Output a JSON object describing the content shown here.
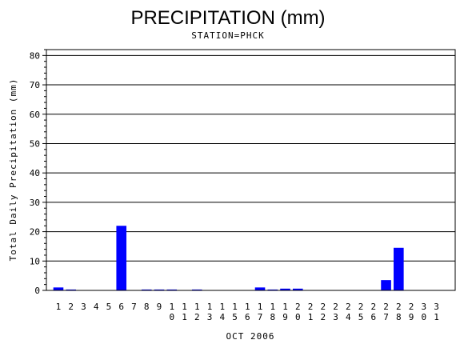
{
  "chart_data": {
    "type": "bar",
    "title": "PRECIPITATION (mm)",
    "subtitle": "STATION=PHCK",
    "xlabel": "OCT 2006",
    "ylabel": "Total Daily Precipitation (mm)",
    "ylim": [
      0,
      82
    ],
    "yticks": [
      0,
      10,
      20,
      30,
      40,
      50,
      60,
      70,
      80
    ],
    "grid": true,
    "bar_color": "#0000ff",
    "categories": [
      "1",
      "2",
      "3",
      "4",
      "5",
      "6",
      "7",
      "8",
      "9",
      "10",
      "11",
      "12",
      "13",
      "14",
      "15",
      "16",
      "17",
      "18",
      "19",
      "20",
      "21",
      "22",
      "23",
      "24",
      "25",
      "26",
      "27",
      "28",
      "29",
      "30",
      "31"
    ],
    "values": [
      1.0,
      0.3,
      0,
      0,
      0,
      22.0,
      0,
      0.3,
      0.3,
      0.3,
      0,
      0.3,
      0,
      0,
      0,
      0,
      1.0,
      0.3,
      0.6,
      0.6,
      0,
      0,
      0,
      0,
      0,
      0,
      3.5,
      14.5,
      0,
      0,
      0
    ]
  }
}
